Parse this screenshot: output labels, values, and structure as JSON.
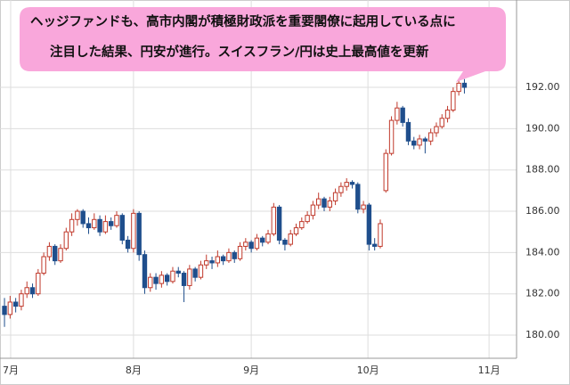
{
  "chart_data": {
    "type": "candlestick",
    "annotation": [
      "ヘッジファンドも、高市内閣が積極財政派を重要閣僚に起用している点に",
      "注目した結果、円安が進行。スイスフラン/円は史上最高値を更新"
    ],
    "up_color": "#c0392b",
    "down_color": "#1f4e8c",
    "grid": true,
    "xlim": [
      -0.8,
      91.3
    ],
    "xticks": [
      {
        "value": 1.1,
        "label": "7月"
      },
      {
        "value": 23,
        "label": "8月"
      },
      {
        "value": 44,
        "label": "9月"
      },
      {
        "value": 64.8,
        "label": "10月"
      },
      {
        "value": 86.4,
        "label": "11月"
      }
    ],
    "ylim": [
      178.88,
      196.23
    ],
    "yticks": [
      {
        "value": 180,
        "label": "180.00"
      },
      {
        "value": 182,
        "label": "182.00"
      },
      {
        "value": 184,
        "label": "184.00"
      },
      {
        "value": 186,
        "label": "186.00"
      },
      {
        "value": 188,
        "label": "188.00"
      },
      {
        "value": 190,
        "label": "190.00"
      },
      {
        "value": 192,
        "label": "192.00"
      }
    ],
    "candles": [
      {
        "open": 181.4,
        "high": 181.8,
        "low": 180.4,
        "close": 181.0
      },
      {
        "open": 181.0,
        "high": 181.9,
        "low": 180.8,
        "close": 181.6
      },
      {
        "open": 181.6,
        "high": 181.8,
        "low": 181.1,
        "close": 181.4
      },
      {
        "open": 181.4,
        "high": 182.2,
        "low": 181.2,
        "close": 182.0
      },
      {
        "open": 182.0,
        "high": 182.6,
        "low": 181.8,
        "close": 182.3
      },
      {
        "open": 182.3,
        "high": 182.5,
        "low": 181.8,
        "close": 182.0
      },
      {
        "open": 182.0,
        "high": 183.2,
        "low": 181.9,
        "close": 183.0
      },
      {
        "open": 183.0,
        "high": 184.0,
        "low": 182.9,
        "close": 183.8
      },
      {
        "open": 183.8,
        "high": 184.5,
        "low": 183.6,
        "close": 184.3
      },
      {
        "open": 184.3,
        "high": 184.4,
        "low": 183.4,
        "close": 183.6
      },
      {
        "open": 183.6,
        "high": 184.4,
        "low": 183.5,
        "close": 184.2
      },
      {
        "open": 184.2,
        "high": 185.2,
        "low": 184.1,
        "close": 185.0
      },
      {
        "open": 185.0,
        "high": 185.9,
        "low": 184.8,
        "close": 185.6
      },
      {
        "open": 185.6,
        "high": 186.1,
        "low": 185.3,
        "close": 186.0
      },
      {
        "open": 186.0,
        "high": 186.1,
        "low": 185.2,
        "close": 185.4
      },
      {
        "open": 185.4,
        "high": 185.7,
        "low": 184.9,
        "close": 185.2
      },
      {
        "open": 185.2,
        "high": 185.9,
        "low": 185.1,
        "close": 185.6
      },
      {
        "open": 185.6,
        "high": 185.8,
        "low": 184.8,
        "close": 185.0
      },
      {
        "open": 185.0,
        "high": 185.8,
        "low": 184.9,
        "close": 185.5
      },
      {
        "open": 185.5,
        "high": 185.7,
        "low": 185.1,
        "close": 185.3
      },
      {
        "open": 185.3,
        "high": 186.0,
        "low": 185.2,
        "close": 185.8
      },
      {
        "open": 185.8,
        "high": 185.9,
        "low": 184.4,
        "close": 184.6
      },
      {
        "open": 184.6,
        "high": 184.8,
        "low": 184.0,
        "close": 184.2
      },
      {
        "open": 184.2,
        "high": 186.1,
        "low": 184.0,
        "close": 185.9
      },
      {
        "open": 185.9,
        "high": 186.0,
        "low": 183.6,
        "close": 183.9
      },
      {
        "open": 183.9,
        "high": 184.1,
        "low": 182.0,
        "close": 182.3
      },
      {
        "open": 182.3,
        "high": 183.0,
        "low": 182.1,
        "close": 182.8
      },
      {
        "open": 182.8,
        "high": 183.0,
        "low": 182.2,
        "close": 182.5
      },
      {
        "open": 182.5,
        "high": 183.1,
        "low": 182.3,
        "close": 182.9
      },
      {
        "open": 182.9,
        "high": 183.0,
        "low": 182.4,
        "close": 182.6
      },
      {
        "open": 182.6,
        "high": 183.3,
        "low": 182.5,
        "close": 183.1
      },
      {
        "open": 183.1,
        "high": 183.3,
        "low": 182.8,
        "close": 183.0
      },
      {
        "open": 183.0,
        "high": 183.1,
        "low": 181.6,
        "close": 182.4
      },
      {
        "open": 182.4,
        "high": 183.4,
        "low": 182.2,
        "close": 183.2
      },
      {
        "open": 183.2,
        "high": 183.3,
        "low": 182.6,
        "close": 182.8
      },
      {
        "open": 182.8,
        "high": 183.6,
        "low": 182.7,
        "close": 183.4
      },
      {
        "open": 183.4,
        "high": 183.9,
        "low": 183.2,
        "close": 183.6
      },
      {
        "open": 183.6,
        "high": 183.8,
        "low": 183.2,
        "close": 183.5
      },
      {
        "open": 183.5,
        "high": 184.1,
        "low": 183.3,
        "close": 183.8
      },
      {
        "open": 183.8,
        "high": 183.9,
        "low": 183.4,
        "close": 183.6
      },
      {
        "open": 183.6,
        "high": 184.2,
        "low": 183.5,
        "close": 184.0
      },
      {
        "open": 184.0,
        "high": 184.1,
        "low": 183.5,
        "close": 183.7
      },
      {
        "open": 183.7,
        "high": 184.5,
        "low": 183.6,
        "close": 184.3
      },
      {
        "open": 184.3,
        "high": 184.7,
        "low": 184.1,
        "close": 184.5
      },
      {
        "open": 184.5,
        "high": 184.6,
        "low": 184.0,
        "close": 184.2
      },
      {
        "open": 184.2,
        "high": 184.9,
        "low": 184.1,
        "close": 184.7
      },
      {
        "open": 184.7,
        "high": 184.8,
        "low": 184.3,
        "close": 184.5
      },
      {
        "open": 184.5,
        "high": 185.1,
        "low": 184.4,
        "close": 184.9
      },
      {
        "open": 184.9,
        "high": 186.4,
        "low": 184.8,
        "close": 186.2
      },
      {
        "open": 186.2,
        "high": 186.3,
        "low": 184.4,
        "close": 184.6
      },
      {
        "open": 184.6,
        "high": 184.7,
        "low": 184.1,
        "close": 184.4
      },
      {
        "open": 184.4,
        "high": 185.1,
        "low": 184.3,
        "close": 184.9
      },
      {
        "open": 184.9,
        "high": 185.4,
        "low": 184.8,
        "close": 185.2
      },
      {
        "open": 185.2,
        "high": 185.7,
        "low": 185.1,
        "close": 185.5
      },
      {
        "open": 185.5,
        "high": 186.0,
        "low": 185.4,
        "close": 185.8
      },
      {
        "open": 185.8,
        "high": 186.5,
        "low": 185.6,
        "close": 186.3
      },
      {
        "open": 186.3,
        "high": 186.9,
        "low": 186.1,
        "close": 186.6
      },
      {
        "open": 186.6,
        "high": 186.7,
        "low": 186.0,
        "close": 186.2
      },
      {
        "open": 186.2,
        "high": 186.7,
        "low": 186.0,
        "close": 186.5
      },
      {
        "open": 186.5,
        "high": 187.1,
        "low": 186.3,
        "close": 186.9
      },
      {
        "open": 186.9,
        "high": 187.4,
        "low": 186.7,
        "close": 187.2
      },
      {
        "open": 187.2,
        "high": 187.6,
        "low": 187.0,
        "close": 187.4
      },
      {
        "open": 187.4,
        "high": 187.5,
        "low": 187.1,
        "close": 187.3
      },
      {
        "open": 187.3,
        "high": 187.4,
        "low": 185.9,
        "close": 186.1
      },
      {
        "open": 186.1,
        "high": 186.5,
        "low": 185.9,
        "close": 186.3
      },
      {
        "open": 186.3,
        "high": 186.4,
        "low": 184.1,
        "close": 184.4
      },
      {
        "open": 184.4,
        "high": 184.7,
        "low": 184.1,
        "close": 184.3
      },
      {
        "open": 184.3,
        "high": 185.6,
        "low": 184.2,
        "close": 185.4
      },
      {
        "open": 187.0,
        "high": 189.0,
        "low": 186.9,
        "close": 188.8
      },
      {
        "open": 188.8,
        "high": 190.6,
        "low": 188.7,
        "close": 190.4
      },
      {
        "open": 190.4,
        "high": 191.3,
        "low": 190.2,
        "close": 191.0
      },
      {
        "open": 191.0,
        "high": 191.1,
        "low": 190.1,
        "close": 190.3
      },
      {
        "open": 190.3,
        "high": 190.5,
        "low": 189.2,
        "close": 189.4
      },
      {
        "open": 189.4,
        "high": 189.6,
        "low": 189.0,
        "close": 189.2
      },
      {
        "open": 189.2,
        "high": 189.7,
        "low": 189.0,
        "close": 189.5
      },
      {
        "open": 189.5,
        "high": 189.6,
        "low": 188.8,
        "close": 189.4
      },
      {
        "open": 189.4,
        "high": 190.0,
        "low": 189.2,
        "close": 189.8
      },
      {
        "open": 189.8,
        "high": 190.3,
        "low": 189.6,
        "close": 190.1
      },
      {
        "open": 190.1,
        "high": 190.7,
        "low": 190.0,
        "close": 190.5
      },
      {
        "open": 190.5,
        "high": 191.1,
        "low": 190.3,
        "close": 190.9
      },
      {
        "open": 190.9,
        "high": 192.0,
        "low": 190.8,
        "close": 191.8
      },
      {
        "open": 191.8,
        "high": 192.4,
        "low": 191.6,
        "close": 192.2
      },
      {
        "open": 192.2,
        "high": 192.4,
        "low": 191.7,
        "close": 192.0
      }
    ]
  }
}
